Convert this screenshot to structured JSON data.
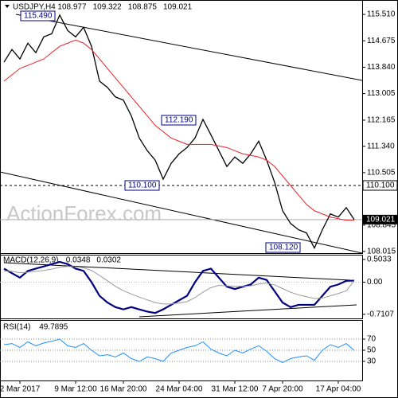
{
  "chart_data": [
    {
      "type": "line",
      "title": "USDJPY,H4",
      "header_values": [
        108.977,
        109.322,
        108.875,
        109.021
      ],
      "categories": [
        null,
        null,
        "2 Mar 2017",
        null,
        null,
        null,
        null,
        null,
        null,
        "9 Mar 12:00",
        null,
        null,
        null,
        null,
        null,
        "16 Mar 20:00",
        null,
        null,
        null,
        null,
        null,
        null,
        "24 Mar 04:00",
        null,
        null,
        null,
        null,
        null,
        null,
        "31 Mar 12:00",
        null,
        null,
        null,
        null,
        null,
        "7 Apr 20:00",
        null,
        null,
        null,
        null,
        null,
        null,
        "17 Apr 04:00",
        null,
        null
      ],
      "series": [
        {
          "color": "#000000",
          "values": [
            114.0,
            114.4,
            114.1,
            114.6,
            114.3,
            114.8,
            114.9,
            115.49,
            115.0,
            114.8,
            115.1,
            114.5,
            113.4,
            113.2,
            112.9,
            112.8,
            112.3,
            111.6,
            111.2,
            110.9,
            110.3,
            110.8,
            111.1,
            111.3,
            111.6,
            112.19,
            111.7,
            111.2,
            110.7,
            111.0,
            110.8,
            111.1,
            111.5,
            110.9,
            110.2,
            109.3,
            108.9,
            108.7,
            108.6,
            108.12,
            108.7,
            109.2,
            109.1,
            109.4,
            109.021
          ]
        },
        {
          "color": "#e8202a",
          "values": [
            113.4,
            113.6,
            113.8,
            113.9,
            114.0,
            114.1,
            114.3,
            114.5,
            114.6,
            114.7,
            114.6,
            114.4,
            114.1,
            113.8,
            113.5,
            113.2,
            112.9,
            112.6,
            112.3,
            112.0,
            111.8,
            111.6,
            111.5,
            111.4,
            111.4,
            111.4,
            111.4,
            111.35,
            111.3,
            111.2,
            111.1,
            111.05,
            111.0,
            110.9,
            110.7,
            110.4,
            110.1,
            109.8,
            109.5,
            109.3,
            109.2,
            109.1,
            109.05,
            109.0,
            109.0
          ]
        }
      ],
      "ylim": [
        107.96,
        115.89
      ],
      "yticks": [
        {
          "value": 115.51,
          "label": "115.510"
        },
        114.675,
        {
          "value": 113.84,
          "label": "113.840"
        },
        113.005,
        112.165,
        {
          "value": 111.34,
          "label": "111.340"
        },
        110.505,
        108.845,
        108.015
      ],
      "level": {
        "value": 110.1,
        "label": "110.100"
      },
      "last_price": {
        "value": 109.021,
        "label": "109.021"
      },
      "annotations": [
        {
          "value": 115.49,
          "label": "115.490"
        },
        {
          "value": 112.19,
          "label": "112.190"
        },
        {
          "value": 110.1,
          "label": "110.100"
        },
        {
          "value": 108.12,
          "label": "108.120"
        }
      ],
      "watermark": "ActionForex.com"
    },
    {
      "type": "line",
      "title": "MACD(12,26,9)",
      "header_values": [
        0.0348,
        0.0302
      ],
      "series": [
        {
          "color": "#000080",
          "values": [
            0.3,
            0.2,
            0.1,
            0.25,
            0.3,
            0.35,
            0.4,
            0.45,
            0.4,
            0.3,
            0.25,
            0.0,
            -0.3,
            -0.45,
            -0.55,
            -0.6,
            -0.55,
            -0.6,
            -0.65,
            -0.68,
            -0.6,
            -0.5,
            -0.4,
            -0.3,
            0.0,
            0.25,
            0.3,
            0.1,
            -0.1,
            -0.15,
            -0.1,
            -0.05,
            0.1,
            0.05,
            -0.2,
            -0.45,
            -0.55,
            -0.5,
            -0.5,
            -0.5,
            -0.3,
            -0.1,
            -0.05,
            0.03,
            0.0348
          ]
        },
        {
          "color": "#999999",
          "values": [
            0.25,
            0.24,
            0.21,
            0.22,
            0.24,
            0.26,
            0.29,
            0.33,
            0.35,
            0.34,
            0.32,
            0.26,
            0.15,
            0.03,
            -0.09,
            -0.19,
            -0.26,
            -0.33,
            -0.39,
            -0.45,
            -0.48,
            -0.48,
            -0.46,
            -0.43,
            -0.34,
            -0.22,
            -0.12,
            -0.07,
            -0.08,
            -0.09,
            -0.09,
            -0.08,
            -0.04,
            -0.02,
            -0.06,
            -0.14,
            -0.22,
            -0.28,
            -0.32,
            -0.36,
            -0.35,
            -0.3,
            -0.25,
            -0.19,
            0.0302
          ]
        }
      ],
      "ylim": [
        -0.8,
        0.59
      ],
      "yticks": [
        0.5033,
        {
          "value": 0,
          "label": "0.00"
        },
        -0.7107
      ]
    },
    {
      "type": "line",
      "title": "RSI(14)",
      "header_values": [
        49.7895
      ],
      "series": [
        {
          "color": "#1e90ff",
          "values": [
            60,
            62,
            55,
            65,
            58,
            63,
            66,
            70,
            58,
            55,
            62,
            50,
            40,
            42,
            38,
            45,
            35,
            30,
            38,
            35,
            30,
            45,
            50,
            55,
            58,
            65,
            52,
            45,
            40,
            50,
            45,
            52,
            58,
            48,
            35,
            28,
            35,
            38,
            40,
            32,
            50,
            60,
            55,
            62,
            49.7895
          ]
        }
      ],
      "ylim": [
        0,
        100
      ],
      "yticks": [
        70,
        50,
        30
      ]
    }
  ]
}
